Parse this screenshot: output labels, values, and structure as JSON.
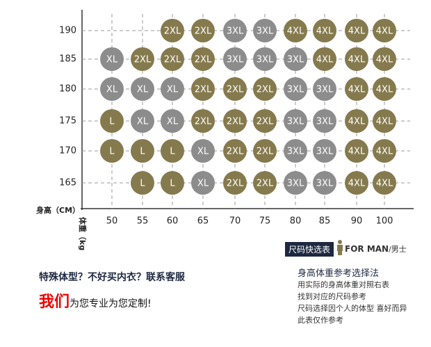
{
  "size_chart": {
    "height_label": "身高（CM）",
    "weight_label": "体重（kg）",
    "weights": [
      50,
      55,
      60,
      65,
      70,
      75,
      80,
      85,
      90,
      100
    ],
    "colors": {
      "L": "#857a4d",
      "XL": "#8c8c8c",
      "2XL": "#857a4d",
      "3XL": "#8c8c8c",
      "4XL": "#857a4d"
    },
    "rows": [
      {
        "height": 190,
        "cells": [
          null,
          null,
          "2XL",
          "2XL",
          "3XL",
          "3XL",
          "4XL",
          "4XL",
          "4XL",
          "4XL"
        ]
      },
      {
        "height": 185,
        "cells": [
          "XL",
          "2XL",
          "2XL",
          "2XL",
          "3XL",
          "3XL",
          "3XL",
          "4XL",
          "4XL",
          "4XL"
        ]
      },
      {
        "height": 180,
        "cells": [
          "XL",
          "XL",
          "XL",
          "2XL",
          "2XL",
          "2XL",
          "3XL",
          "3XL",
          "4XL",
          "4XL"
        ]
      },
      {
        "height": 175,
        "cells": [
          "L",
          "XL",
          "XL",
          "2XL",
          "2XL",
          "2XL",
          "3XL",
          "3XL",
          "4XL",
          "4XL"
        ]
      },
      {
        "height": 170,
        "cells": [
          "L",
          "L",
          "L",
          "XL",
          "2XL",
          "2XL",
          "3XL",
          "3XL",
          "4XL",
          "4XL"
        ]
      },
      {
        "height": 165,
        "cells": [
          null,
          "L",
          "L",
          "XL",
          "2XL",
          "2XL",
          "3XL",
          "3XL",
          "4XL",
          "4XL"
        ]
      }
    ]
  },
  "badge": {
    "title": "尺码快选表",
    "for": "FOR MAN",
    "gender": "/男士"
  },
  "contact": {
    "line1": "特殊体型？不好买内衣？联系客服",
    "emph": "我们",
    "line2": "为您专业为您定制!"
  },
  "guide": {
    "title": "身高体重参考选择法",
    "lines": [
      "用实际的身高体重对照右表",
      "找到对应的尺码参考",
      "尺码选择因个人的体型 喜好而异",
      "此表仅作参考"
    ]
  }
}
